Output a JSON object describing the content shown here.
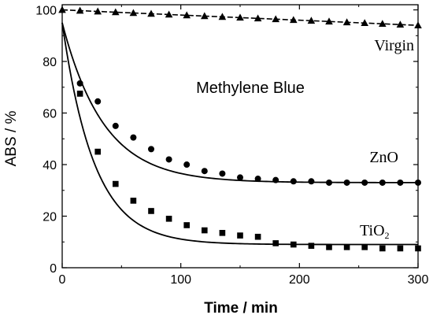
{
  "chart_data": {
    "type": "scatter",
    "title": "",
    "xlabel": "Time / min",
    "ylabel": "ABS / %",
    "xlim": [
      0,
      300
    ],
    "ylim": [
      0,
      102
    ],
    "xticks": [
      0,
      100,
      200,
      300
    ],
    "yticks": [
      0,
      20,
      40,
      60,
      80,
      100
    ],
    "grid": false,
    "annotations": {
      "center_label": "Methylene Blue",
      "virgin": "Virgin",
      "zno": "ZnO",
      "tio2_base": "TiO",
      "tio2_sub": "2"
    },
    "series": [
      {
        "name": "Virgin",
        "marker": "triangle",
        "line": "dashed",
        "x": [
          0,
          15,
          30,
          45,
          60,
          75,
          90,
          105,
          120,
          135,
          150,
          165,
          180,
          195,
          210,
          225,
          240,
          255,
          270,
          285,
          300
        ],
        "y": [
          100,
          99.7,
          99.4,
          99.1,
          98.8,
          98.5,
          98.2,
          97.9,
          97.6,
          97.3,
          97.0,
          96.7,
          96.4,
          96.1,
          95.8,
          95.5,
          95.2,
          94.9,
          94.6,
          94.3,
          94.0
        ]
      },
      {
        "name": "ZnO",
        "marker": "circle",
        "fit": {
          "type": "exp_decay",
          "y0": 33,
          "amplitude": 62,
          "tau": 35
        },
        "x": [
          15,
          30,
          45,
          60,
          75,
          90,
          105,
          120,
          135,
          150,
          165,
          180,
          195,
          210,
          225,
          240,
          255,
          270,
          285,
          300
        ],
        "y": [
          71.5,
          64.5,
          55.0,
          50.5,
          46.0,
          42.0,
          40.0,
          37.5,
          36.5,
          35.0,
          34.5,
          34.0,
          33.5,
          33.5,
          33.0,
          33.0,
          33.0,
          33.0,
          33.0,
          33.0
        ]
      },
      {
        "name": "TiO2",
        "marker": "square",
        "fit": {
          "type": "exp_decay",
          "y0": 9,
          "amplitude": 86,
          "tau": 27
        },
        "x": [
          15,
          30,
          45,
          60,
          75,
          90,
          105,
          120,
          135,
          150,
          165,
          180,
          195,
          210,
          225,
          240,
          255,
          270,
          285,
          300
        ],
        "y": [
          67.5,
          45.0,
          32.5,
          26.0,
          22.0,
          19.0,
          16.5,
          14.5,
          13.5,
          12.5,
          12.0,
          9.5,
          9.0,
          8.5,
          8.0,
          8.0,
          8.0,
          7.5,
          7.5,
          7.5
        ]
      }
    ]
  }
}
